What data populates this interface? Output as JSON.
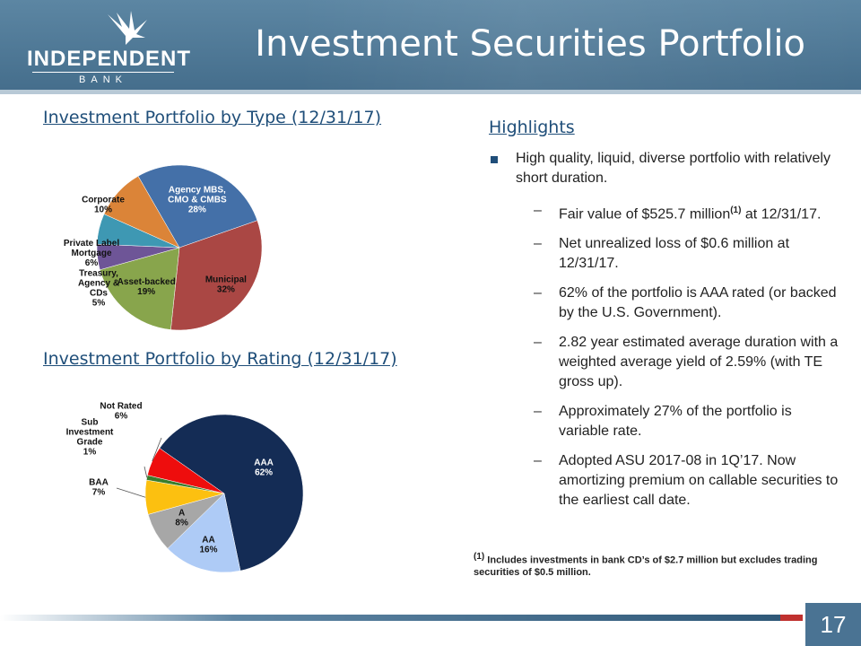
{
  "header": {
    "logo_name": "INDEPENDENT",
    "logo_sub": "BANK",
    "title": "Investment Securities Portfolio"
  },
  "charts": {
    "type_title": "Investment Portfolio by Type (12/31/17)",
    "rating_title": "Investment Portfolio by Rating (12/31/17)"
  },
  "chart_data": [
    {
      "type": "pie",
      "title": "Investment Portfolio by Type (12/31/17)",
      "slices": [
        {
          "label": "Agency MBS, CMO & CMBS",
          "value": 28,
          "display": "28%",
          "color": "#4470a8"
        },
        {
          "label": "Municipal",
          "value": 32,
          "display": "32%",
          "color": "#aa4744"
        },
        {
          "label": "Asset-backed",
          "value": 19,
          "display": "19%",
          "color": "#88a54c"
        },
        {
          "label": "Treasury, Agency & CDs",
          "value": 5,
          "display": "5%",
          "color": "#6e5597"
        },
        {
          "label": "Private Label Mortgage",
          "value": 6,
          "display": "6%",
          "color": "#3e98b3"
        },
        {
          "label": "Corporate",
          "value": 10,
          "display": "10%",
          "color": "#db8438"
        }
      ]
    },
    {
      "type": "pie",
      "title": "Investment Portfolio by Rating (12/31/17)",
      "slices": [
        {
          "label": "AAA",
          "value": 62,
          "display": "62%",
          "color": "#142c55"
        },
        {
          "label": "AA",
          "value": 16,
          "display": "16%",
          "color": "#aecbf6"
        },
        {
          "label": "A",
          "value": 8,
          "display": "8%",
          "color": "#a7a7a7"
        },
        {
          "label": "BAA",
          "value": 7,
          "display": "7%",
          "color": "#fcc010"
        },
        {
          "label": "Sub Investment Grade",
          "value": 1,
          "display": "1%",
          "color": "#3a7d2c"
        },
        {
          "label": "Not Rated",
          "value": 6,
          "display": "6%",
          "color": "#ee0d0d"
        }
      ]
    }
  ],
  "highlights": {
    "title": "Highlights",
    "main": "High quality, liquid, diverse portfolio with relatively short duration.",
    "subs": [
      {
        "dash": "–",
        "text": "Fair value of $525.7 million",
        "sup": "(1)",
        "after": " at 12/31/17."
      },
      {
        "dash": "–",
        "text": "Net unrealized loss of $0.6 million at 12/31/17.",
        "sup": "",
        "after": ""
      },
      {
        "dash": "–",
        "text": "62% of the portfolio is AAA rated (or backed by the U.S. Government).",
        "sup": "",
        "after": ""
      },
      {
        "dash": "–",
        "text": "2.82 year estimated average duration with a weighted average yield of 2.59% (with TE gross up).",
        "sup": "",
        "after": ""
      },
      {
        "dash": "–",
        "text": "Approximately 27% of the portfolio is variable rate.",
        "sup": "",
        "after": ""
      },
      {
        "dash": "–",
        "text": "Adopted ASU 2017-08 in 1Q’17. Now amortizing premium on callable securities to the earliest call date.",
        "sup": "",
        "after": ""
      }
    ],
    "footnote_sup": "(1)",
    "footnote": " Includes investments in bank CD’s of $2.7 million but excludes trading securities of $0.5 million."
  },
  "page_number": "17"
}
